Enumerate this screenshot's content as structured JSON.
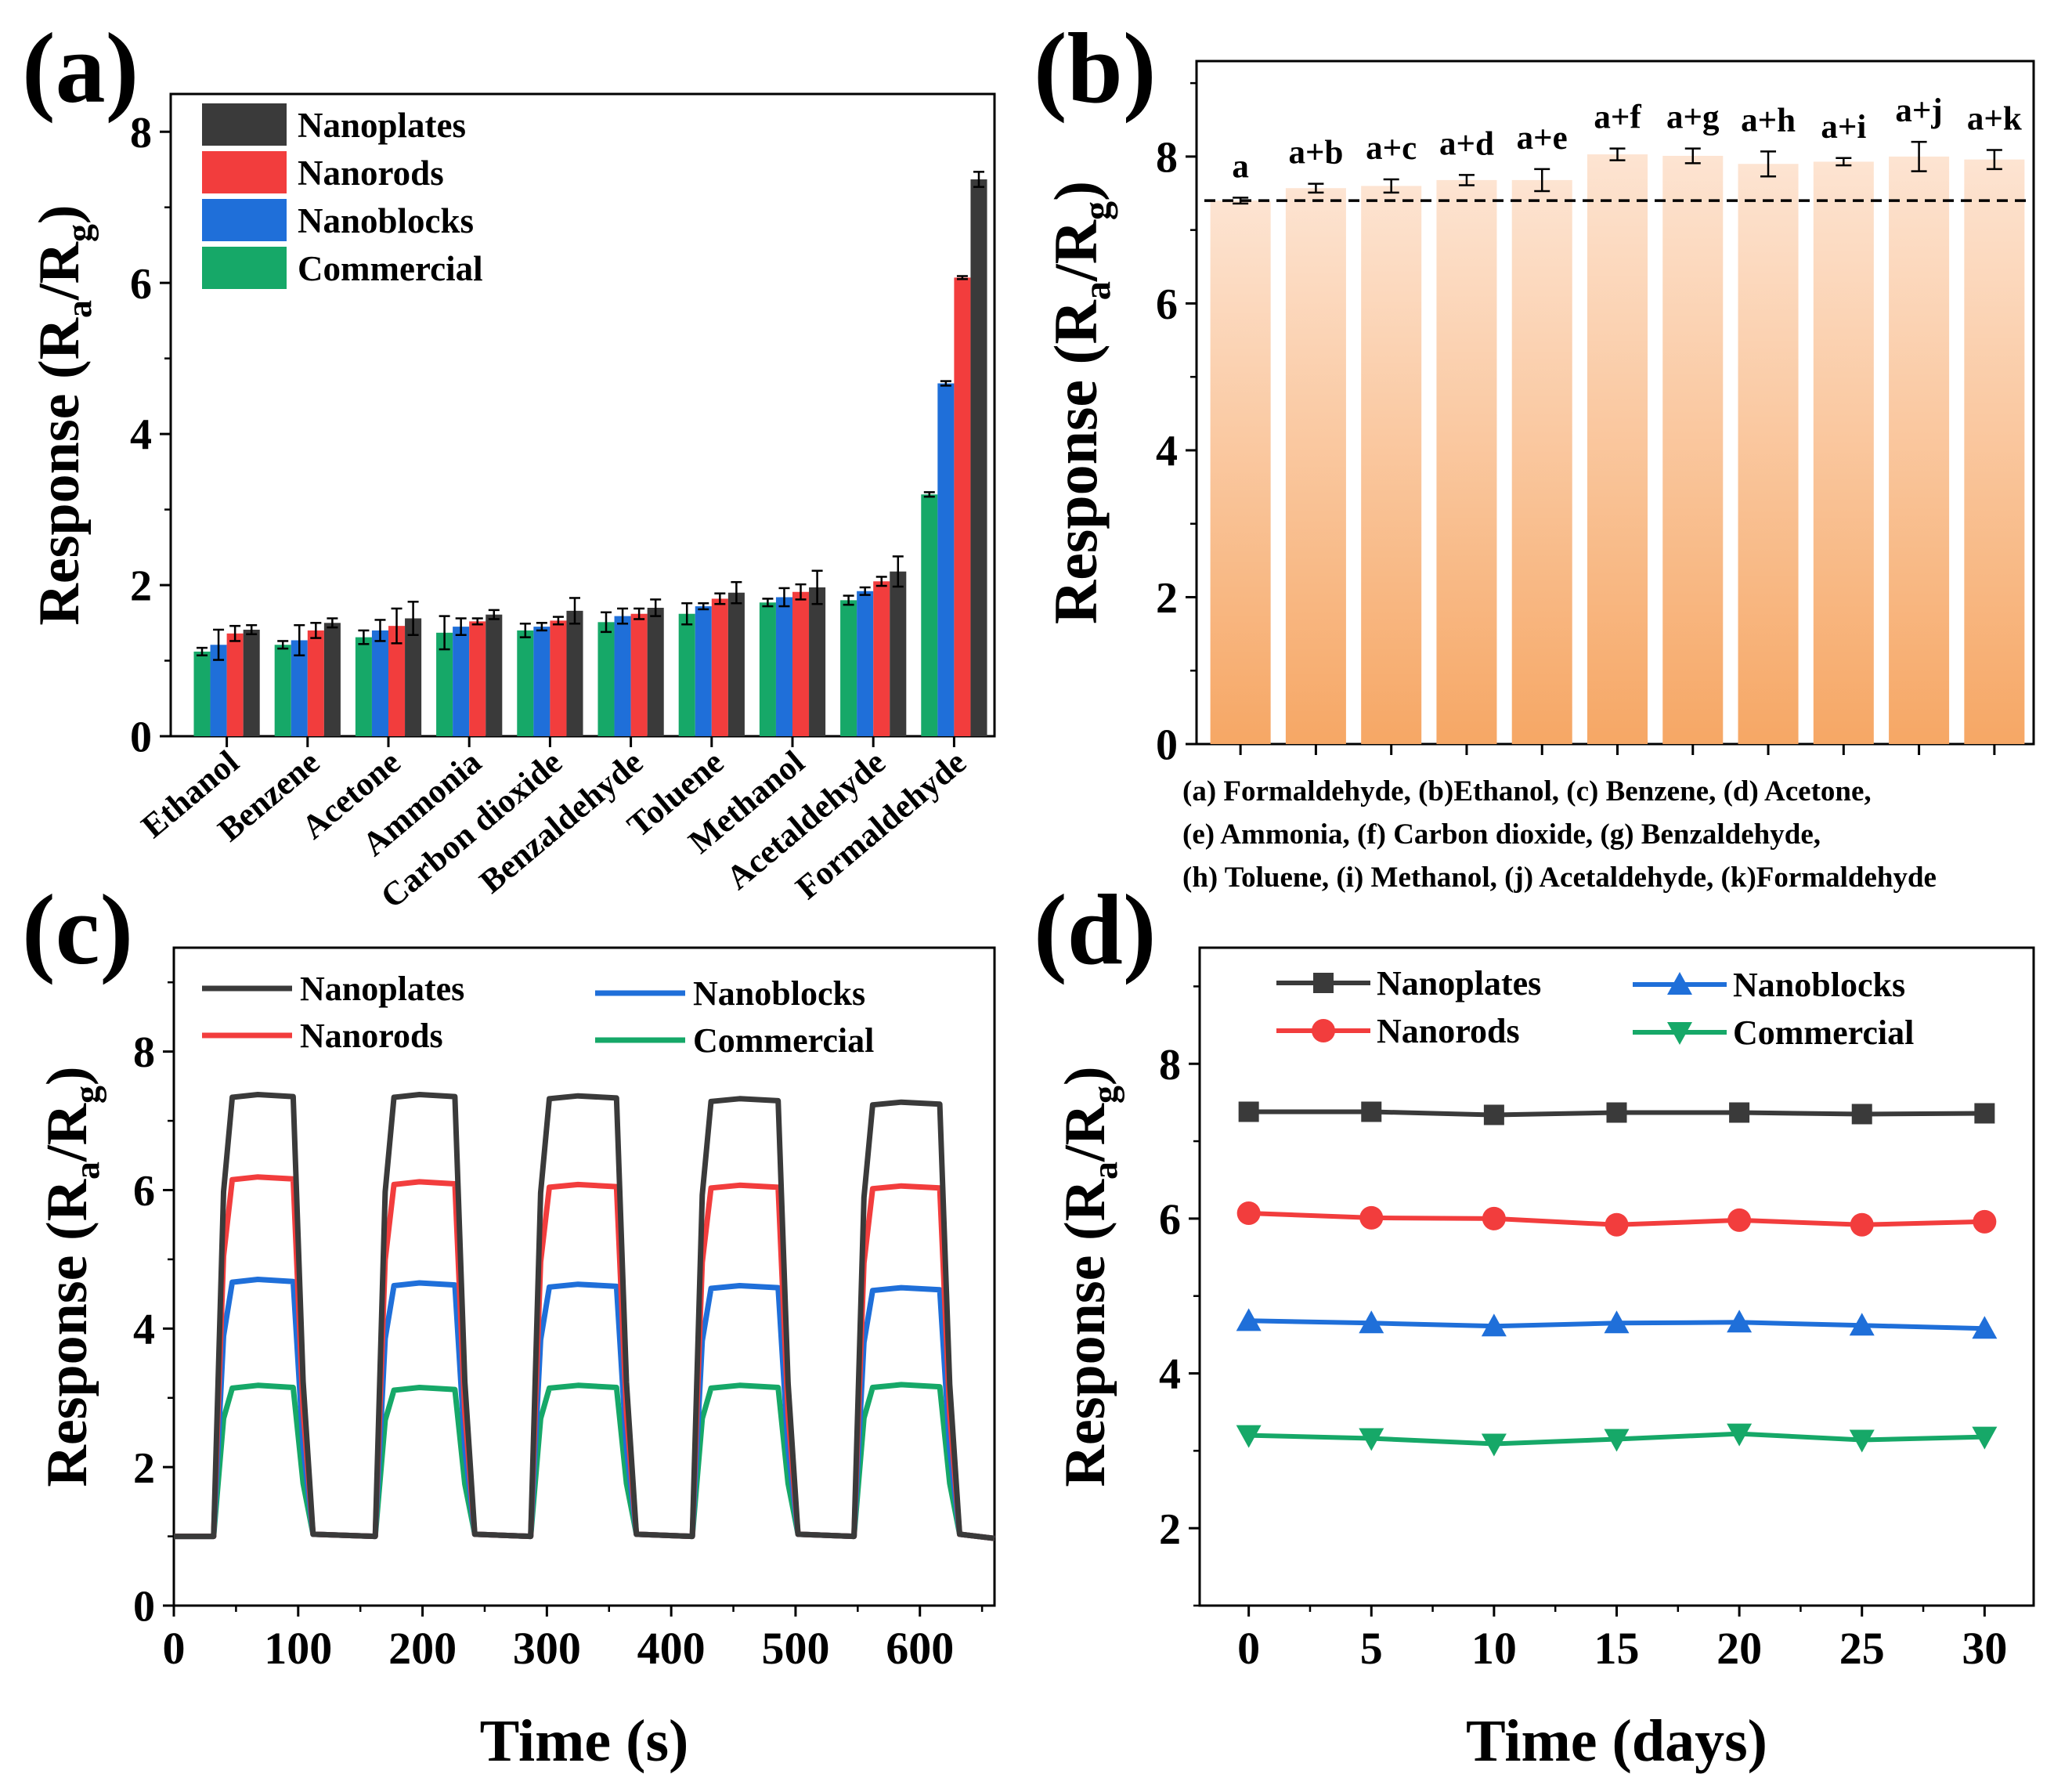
{
  "figure": {
    "panel_labels": [
      "(a)",
      "(b)",
      "(c)",
      "(d)"
    ],
    "colors": {
      "Nanoplates": "#3a3a3a",
      "Nanorods": "#f23d3d",
      "Nanoblocks": "#1f6fd9",
      "Commercial": "#16a868",
      "bar_b_top": "#fde4d2",
      "bar_b_bottom": "#f6a765"
    }
  },
  "chart_data": [
    {
      "panel": "(a)",
      "type": "bar",
      "title": "",
      "xlabel": "",
      "ylabel_main": "Response (R",
      "ylabel_sub_a": "a",
      "ylabel_mid": "/R",
      "ylabel_sub_g": "g",
      "ylabel_end": ")",
      "ylim": [
        0,
        8.5
      ],
      "yticks": [
        "0",
        "2",
        "4",
        "6",
        "8"
      ],
      "legend_position": "top-left",
      "categories": [
        "Ethanol",
        "Benzene",
        "Acetone",
        "Ammonia",
        "Carbon dioxide",
        "Benzaldehyde",
        "Toluene",
        "Methanol",
        "Acetaldehyde",
        "Formaldehyde"
      ],
      "series": [
        {
          "name": "Commercial",
          "values": [
            1.12,
            1.21,
            1.31,
            1.37,
            1.4,
            1.51,
            1.62,
            1.77,
            1.8,
            3.2
          ],
          "errors": [
            0.05,
            0.05,
            0.09,
            0.22,
            0.09,
            0.13,
            0.14,
            0.05,
            0.06,
            0.03
          ]
        },
        {
          "name": "Nanoblocks",
          "values": [
            1.21,
            1.27,
            1.4,
            1.45,
            1.45,
            1.59,
            1.72,
            1.84,
            1.92,
            4.67
          ],
          "errors": [
            0.2,
            0.2,
            0.14,
            0.11,
            0.05,
            0.1,
            0.04,
            0.12,
            0.05,
            0.03
          ]
        },
        {
          "name": "Nanorods",
          "values": [
            1.36,
            1.4,
            1.46,
            1.52,
            1.53,
            1.62,
            1.82,
            1.91,
            2.05,
            6.07
          ],
          "errors": [
            0.1,
            0.1,
            0.23,
            0.04,
            0.05,
            0.07,
            0.07,
            0.1,
            0.06,
            0.02
          ]
        },
        {
          "name": "Nanoplates",
          "values": [
            1.41,
            1.5,
            1.56,
            1.61,
            1.66,
            1.7,
            1.9,
            1.97,
            2.18,
            7.37
          ],
          "errors": [
            0.06,
            0.06,
            0.22,
            0.06,
            0.17,
            0.11,
            0.14,
            0.22,
            0.2,
            0.1
          ]
        }
      ],
      "legend": [
        "Nanoplates",
        "Nanorods",
        "Nanoblocks",
        "Commercial"
      ]
    },
    {
      "panel": "(b)",
      "type": "bar",
      "title": "",
      "ylabel_main": "Response (R",
      "ylabel_sub_a": "a",
      "ylabel_mid": "/R",
      "ylabel_sub_g": "g",
      "ylabel_end": ")",
      "ylim": [
        0,
        9.3
      ],
      "yticks": [
        "0",
        "2",
        "4",
        "6",
        "8"
      ],
      "categories": [
        "a",
        "a+b",
        "a+c",
        "a+d",
        "a+e",
        "a+f",
        "a+g",
        "a+h",
        "a+i",
        "a+j",
        "a+k"
      ],
      "values": [
        7.4,
        7.57,
        7.6,
        7.68,
        7.68,
        8.03,
        8.01,
        7.9,
        7.93,
        8.0,
        7.96
      ],
      "errors": [
        0.04,
        0.06,
        0.09,
        0.07,
        0.15,
        0.08,
        0.1,
        0.17,
        0.05,
        0.2,
        0.13
      ],
      "reference_line": 7.4,
      "footnote": [
        "(a) Formaldehyde, (b)Ethanol, (c) Benzene, (d) Acetone,",
        "(e) Ammonia, (f) Carbon dioxide, (g) Benzaldehyde,",
        "(h) Toluene, (i) Methanol, (j) Acetaldehyde, (k)Formaldehyde"
      ]
    },
    {
      "panel": "(c)",
      "type": "line",
      "xlabel": "Time (s)",
      "ylabel_main": "Response (R",
      "ylabel_sub_a": "a",
      "ylabel_mid": "/R",
      "ylabel_sub_g": "g",
      "ylabel_end": ")",
      "xlim": [
        0,
        660
      ],
      "ylim": [
        0,
        9.5
      ],
      "xticks": [
        "0",
        "100",
        "200",
        "300",
        "400",
        "500",
        "600"
      ],
      "yticks": [
        "0",
        "2",
        "4",
        "6",
        "8"
      ],
      "cycles_on": [
        [
          35,
          100
        ],
        [
          165,
          230
        ],
        [
          290,
          360
        ],
        [
          420,
          490
        ],
        [
          550,
          620
        ]
      ],
      "baseline": 1.0,
      "series": [
        {
          "name": "Nanoplates",
          "levels": [
            7.38,
            7.38,
            7.36,
            7.32,
            7.27
          ]
        },
        {
          "name": "Nanorods",
          "levels": [
            6.19,
            6.12,
            6.08,
            6.07,
            6.06
          ]
        },
        {
          "name": "Nanoblocks",
          "levels": [
            4.71,
            4.66,
            4.64,
            4.62,
            4.59
          ]
        },
        {
          "name": "Commercial",
          "levels": [
            3.18,
            3.15,
            3.18,
            3.18,
            3.19
          ]
        }
      ],
      "legend": [
        "Nanoplates",
        "Nanorods",
        "Nanoblocks",
        "Commercial"
      ]
    },
    {
      "panel": "(d)",
      "type": "line",
      "xlabel": "Time (days)",
      "ylabel_main": "Response (R",
      "ylabel_sub_a": "a",
      "ylabel_mid": "/R",
      "ylabel_sub_g": "g",
      "ylabel_end": ")",
      "xlim": [
        -2,
        32
      ],
      "ylim": [
        1.0,
        9.5
      ],
      "xticks": [
        "0",
        "5",
        "10",
        "15",
        "20",
        "25",
        "30"
      ],
      "yticks": [
        "2",
        "4",
        "6",
        "8"
      ],
      "x": [
        0,
        5,
        10,
        15,
        20,
        25,
        30
      ],
      "series": [
        {
          "name": "Nanoplates",
          "marker": "square",
          "values": [
            7.38,
            7.38,
            7.34,
            7.37,
            7.37,
            7.35,
            7.36
          ]
        },
        {
          "name": "Nanorods",
          "marker": "circle",
          "values": [
            6.07,
            6.01,
            6.0,
            5.92,
            5.98,
            5.92,
            5.96
          ]
        },
        {
          "name": "Nanoblocks",
          "marker": "triangle-up",
          "values": [
            4.68,
            4.65,
            4.61,
            4.65,
            4.66,
            4.62,
            4.58
          ]
        },
        {
          "name": "Commercial",
          "marker": "triangle-down",
          "values": [
            3.2,
            3.16,
            3.09,
            3.15,
            3.22,
            3.14,
            3.18
          ]
        }
      ],
      "legend": [
        "Nanoplates",
        "Nanoblocks",
        "Nanorods",
        "Commercial"
      ]
    }
  ]
}
